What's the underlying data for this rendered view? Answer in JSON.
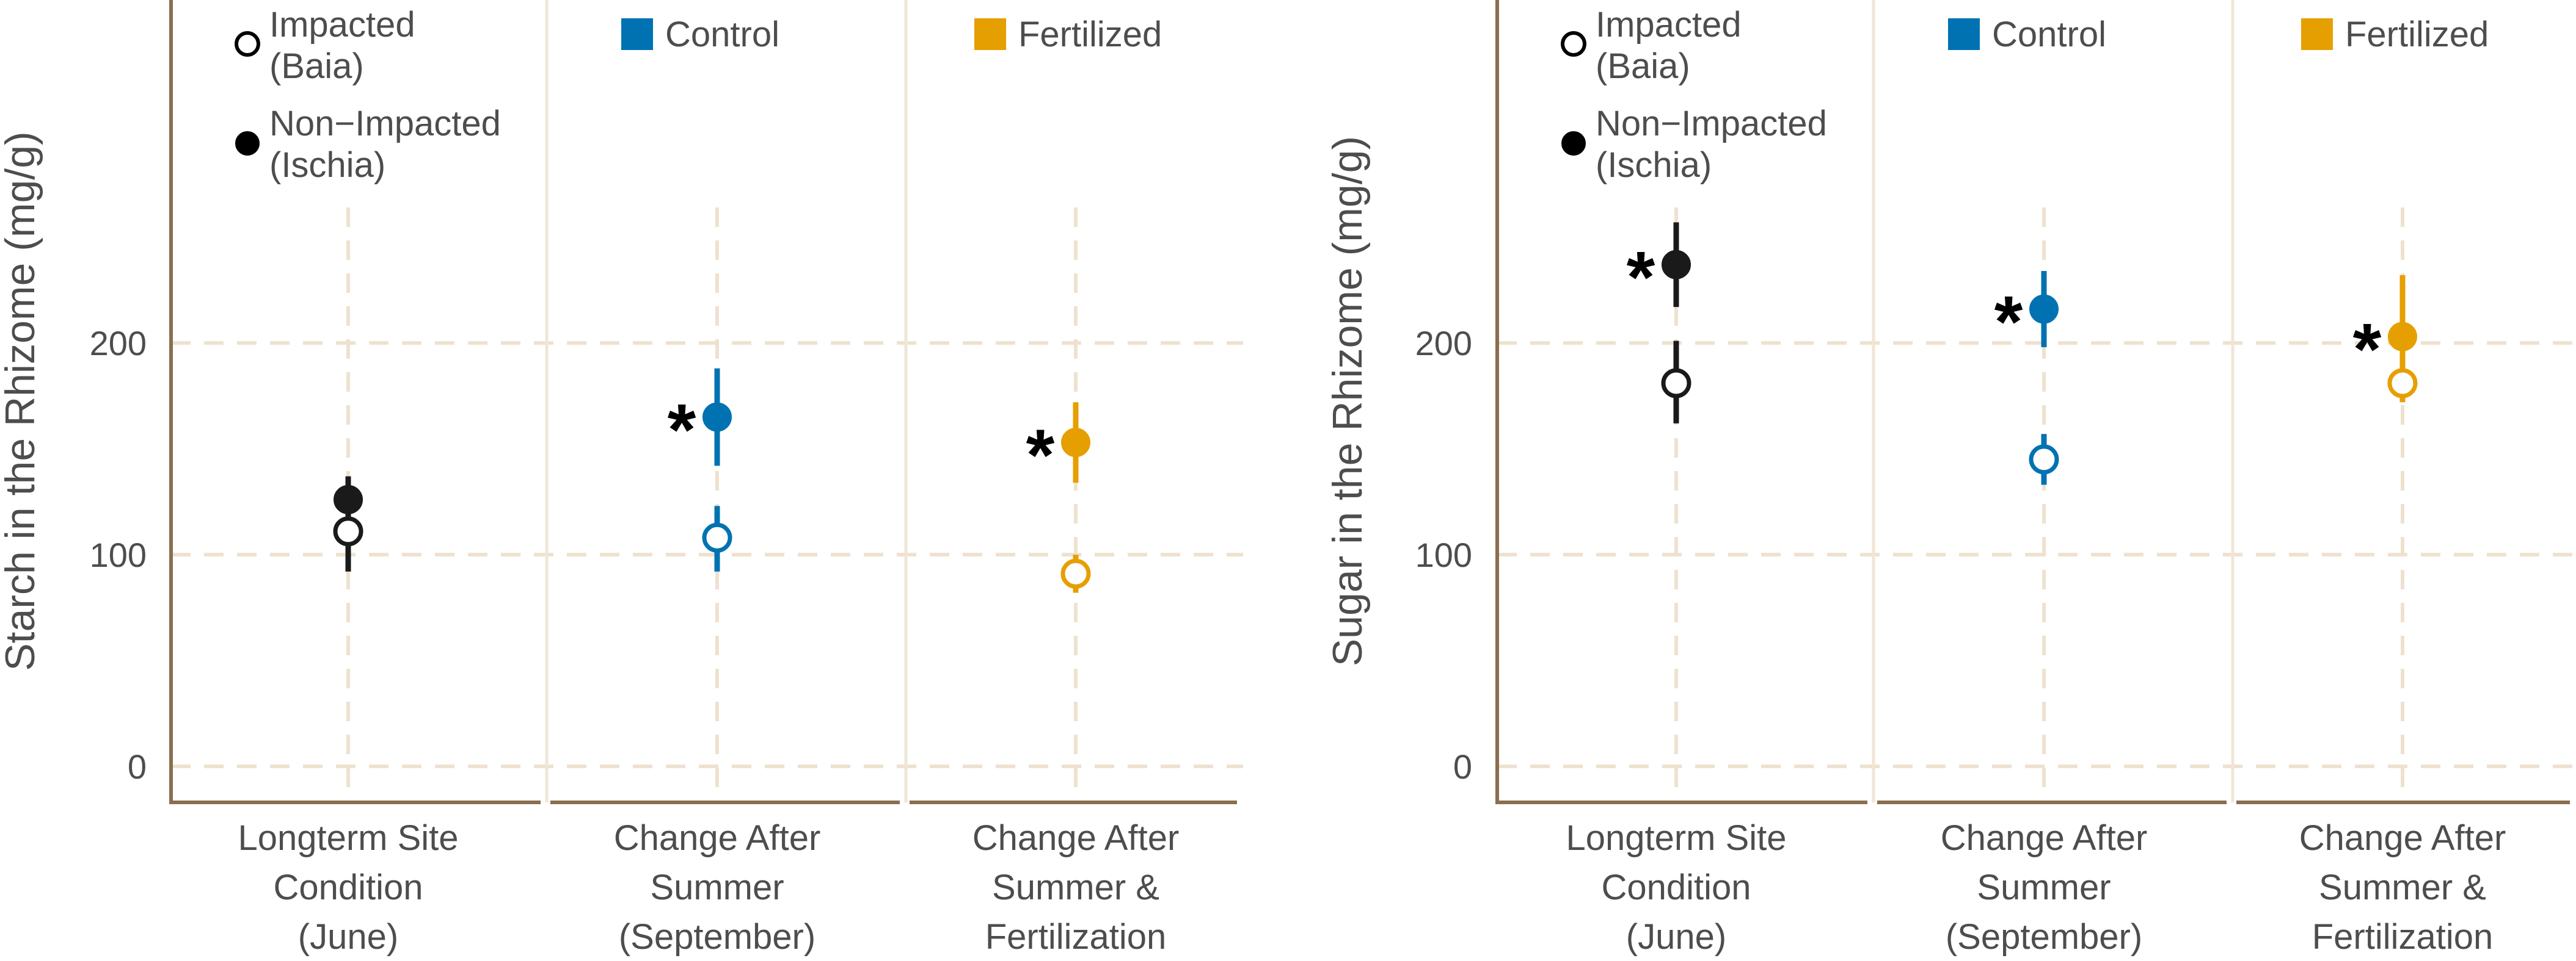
{
  "colors": {
    "site": "#1a1a1a",
    "control": "#0072b2",
    "fertilized": "#e69f00"
  },
  "legend": {
    "impacted": [
      "Impacted",
      "(Baia)"
    ],
    "non_impacted": [
      "Non−Impacted",
      "(Ischia)"
    ],
    "control": "Control",
    "fertilized": "Fertilized"
  },
  "chart_data": [
    {
      "type": "scatter",
      "ylabel": "Starch in the Rhizome (mg/g)",
      "ylim": [
        -17,
        362
      ],
      "yticks": [
        0,
        100,
        200
      ],
      "categories": [
        [
          "Longterm Site",
          "Condition",
          "(June)"
        ],
        [
          "Change After",
          "Summer",
          "(September)"
        ],
        [
          "Change After",
          "Summer &",
          "Fertilization"
        ]
      ],
      "groups": [
        {
          "color": "site",
          "impacted": {
            "value": 111,
            "low": 92,
            "high": 130
          },
          "non_impacted": {
            "value": 126,
            "low": 116,
            "high": 137
          },
          "significant": false
        },
        {
          "color": "control",
          "impacted": {
            "value": 108,
            "low": 92,
            "high": 123
          },
          "non_impacted": {
            "value": 165,
            "low": 142,
            "high": 188
          },
          "significant": true
        },
        {
          "color": "fertilized",
          "impacted": {
            "value": 91,
            "low": 82,
            "high": 100
          },
          "non_impacted": {
            "value": 153,
            "low": 134,
            "high": 172
          },
          "significant": true
        }
      ],
      "star": "*"
    },
    {
      "type": "scatter",
      "ylabel": "Sugar in the Rhizome (mg/g)",
      "ylim": [
        -17,
        362
      ],
      "yticks": [
        0,
        100,
        200
      ],
      "categories": [
        [
          "Longterm Site",
          "Condition",
          "(June)"
        ],
        [
          "Change After",
          "Summer",
          "(September)"
        ],
        [
          "Change After",
          "Summer &",
          "Fertilization"
        ]
      ],
      "groups": [
        {
          "color": "site",
          "impacted": {
            "value": 181,
            "low": 162,
            "high": 201
          },
          "non_impacted": {
            "value": 237,
            "low": 217,
            "high": 257
          },
          "significant": true
        },
        {
          "color": "control",
          "impacted": {
            "value": 145,
            "low": 133,
            "high": 157
          },
          "non_impacted": {
            "value": 216,
            "low": 198,
            "high": 234
          },
          "significant": true
        },
        {
          "color": "fertilized",
          "impacted": {
            "value": 181,
            "low": 172,
            "high": 190
          },
          "non_impacted": {
            "value": 203,
            "low": 184,
            "high": 232
          },
          "significant": true
        }
      ],
      "star": "*"
    }
  ]
}
